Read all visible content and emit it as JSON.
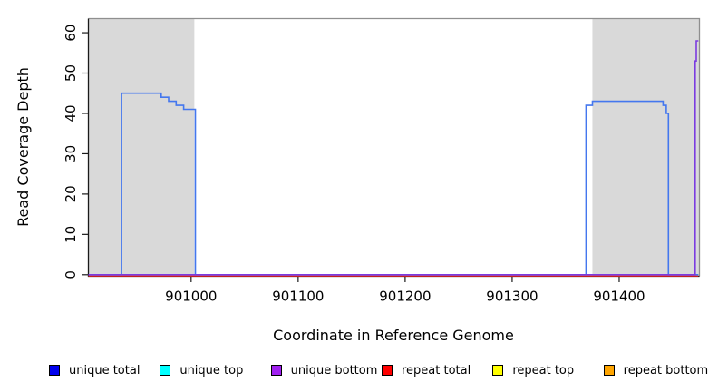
{
  "chart_data": {
    "type": "line",
    "subtype": "step-coverage",
    "title": "",
    "xlabel": "Coordinate in Reference Genome",
    "ylabel": "Read Coverage Depth",
    "xlim": [
      900904,
      901475
    ],
    "ylim": [
      0,
      64
    ],
    "x_ticks": [
      901000,
      901100,
      901200,
      901300,
      901400
    ],
    "y_ticks": [
      0,
      10,
      20,
      30,
      40,
      50,
      60
    ],
    "grid": false,
    "plot_bg": "#ffffff",
    "box_top_right_color": "#8f8f8f",
    "axis_color": "#1a1a1a",
    "highlight_regions": [
      {
        "name": "left-aligned-region",
        "start": 900904,
        "end": 901003,
        "color": "#d9d9d9"
      },
      {
        "name": "right-aligned-region",
        "start": 901375,
        "end": 901475,
        "color": "#d9d9d9"
      }
    ],
    "series": [
      {
        "name": "repeat bottom",
        "line_color": "#FFA500",
        "width": 1.2,
        "points": [
          [
            900904,
            0
          ],
          [
            901474,
            0
          ]
        ]
      },
      {
        "name": "repeat top",
        "line_color": "#FFFF00",
        "width": 1.2,
        "points": [
          [
            900904,
            0
          ],
          [
            901474,
            0
          ]
        ]
      },
      {
        "name": "unique top",
        "line_color": "#00FFFF",
        "width": 1.2,
        "points": [
          [
            900904,
            0
          ],
          [
            901474,
            0
          ]
        ]
      },
      {
        "name": "repeat total",
        "line_color": "#FF2222",
        "width": 1.2,
        "points": [
          [
            900904,
            0
          ],
          [
            901474,
            0
          ]
        ]
      },
      {
        "name": "unique total",
        "line_color": "#4477EE",
        "width": 1.6,
        "points": [
          [
            900904,
            0
          ],
          [
            900935,
            45
          ],
          [
            900972,
            44
          ],
          [
            900979,
            43
          ],
          [
            900986,
            42
          ],
          [
            900993,
            41
          ],
          [
            901004,
            0
          ],
          [
            901369,
            42
          ],
          [
            901375,
            43
          ],
          [
            901441,
            42
          ],
          [
            901444,
            40
          ],
          [
            901446,
            0
          ],
          [
            901474,
            0
          ]
        ]
      },
      {
        "name": "unique bottom",
        "line_color": "#7B3BE0",
        "width": 1.6,
        "points": [
          [
            900904,
            0
          ],
          [
            901471,
            53
          ],
          [
            901472,
            58
          ],
          [
            901474,
            58
          ]
        ]
      }
    ],
    "legend_position": "bottom",
    "legend": [
      {
        "label": "unique total",
        "color": "#0000EE"
      },
      {
        "label": "unique top",
        "color": "#00FFFF"
      },
      {
        "label": "unique bottom",
        "color": "#A020F0"
      },
      {
        "label": "repeat total",
        "color": "#FF0000"
      },
      {
        "label": "repeat top",
        "color": "#FFFF00"
      },
      {
        "label": "repeat bottom",
        "color": "#FFA500"
      }
    ]
  }
}
